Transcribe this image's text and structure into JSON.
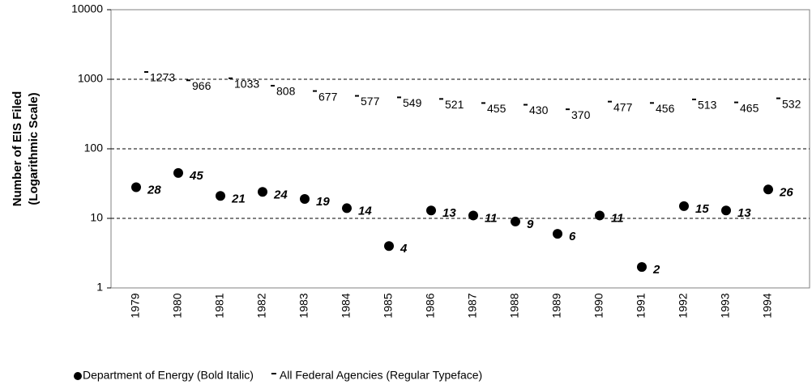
{
  "chart_data": {
    "type": "scatter",
    "y_label": [
      "Number of EIS Filed",
      "(Logarithmic Scale)"
    ],
    "categories": [
      "1979",
      "1980",
      "1981",
      "1982",
      "1983",
      "1984",
      "1985",
      "1986",
      "1987",
      "1988",
      "1989",
      "1990",
      "1991",
      "1992",
      "1993",
      "1994"
    ],
    "series": [
      {
        "name": "Department of Energy (Bold Italic)",
        "color": "#000000",
        "marker": "dot",
        "values": [
          28,
          45,
          21,
          24,
          19,
          14,
          4,
          13,
          11,
          9,
          6,
          11,
          2,
          15,
          13,
          26
        ]
      },
      {
        "name": "All Federal Agencies (Regular Typeface)",
        "color": "#000000",
        "marker": "dash",
        "values": [
          1273,
          966,
          1033,
          808,
          677,
          577,
          549,
          521,
          455,
          430,
          370,
          477,
          456,
          513,
          465,
          532
        ]
      }
    ],
    "ylim": [
      1,
      10000
    ],
    "yticks": [
      1,
      10,
      100,
      1000,
      10000
    ],
    "log_y": true,
    "grid": true,
    "legend": "bottom"
  }
}
